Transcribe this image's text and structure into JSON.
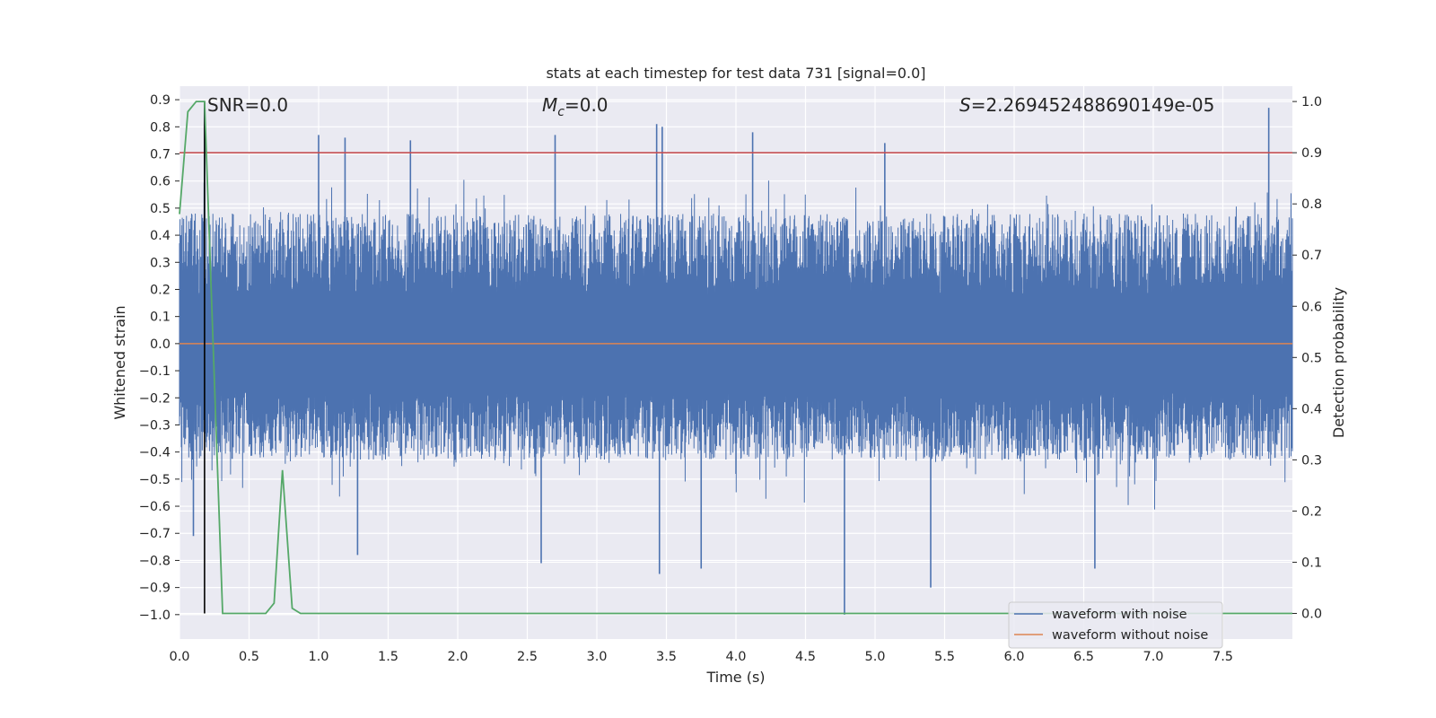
{
  "chart_data": {
    "type": "line",
    "title": "stats at each timestep for test data 731 [signal=0.0]",
    "xlabel": "Time (s)",
    "ylabel": "Whitened strain",
    "y2label": "Detection probability",
    "xlim": [
      0.0,
      8.0
    ],
    "ylim": [
      -1.09,
      0.95
    ],
    "y2lim": [
      -0.05,
      1.03
    ],
    "xticks": [
      "0.0",
      "0.5",
      "1.0",
      "1.5",
      "2.0",
      "2.5",
      "3.0",
      "3.5",
      "4.0",
      "4.5",
      "5.0",
      "5.5",
      "6.0",
      "6.5",
      "7.0",
      "7.5"
    ],
    "xtick_values": [
      0.0,
      0.5,
      1.0,
      1.5,
      2.0,
      2.5,
      3.0,
      3.5,
      4.0,
      4.5,
      5.0,
      5.5,
      6.0,
      6.5,
      7.0,
      7.5
    ],
    "yticks": [
      "0.9",
      "0.8",
      "0.7",
      "0.6",
      "0.5",
      "0.4",
      "0.3",
      "0.2",
      "0.1",
      "0.0",
      "−0.1",
      "−0.2",
      "−0.3",
      "−0.4",
      "−0.5",
      "−0.6",
      "−0.7",
      "−0.8",
      "−0.9",
      "−1.0"
    ],
    "ytick_values": [
      0.9,
      0.8,
      0.7,
      0.6,
      0.5,
      0.4,
      0.3,
      0.2,
      0.1,
      0.0,
      -0.1,
      -0.2,
      -0.3,
      -0.4,
      -0.5,
      -0.6,
      -0.7,
      -0.8,
      -0.9,
      -1.0
    ],
    "y2ticks": [
      "1.0",
      "0.9",
      "0.8",
      "0.7",
      "0.6",
      "0.5",
      "0.4",
      "0.3",
      "0.2",
      "0.1",
      "0.0"
    ],
    "y2tick_values": [
      1.0,
      0.9,
      0.8,
      0.7,
      0.6,
      0.5,
      0.4,
      0.3,
      0.2,
      0.1,
      0.0
    ],
    "annotations": {
      "snr": "SNR=0.0",
      "mc_symbol": "M",
      "mc_sub": "c",
      "mc_value": "=0.0",
      "s_symbol": "S",
      "s_value": "=2.269452488690149e-05"
    },
    "threshold": {
      "value": 0.9,
      "axis": "y2",
      "color": "#c44e52"
    },
    "peak_marker": {
      "x": 0.18,
      "color": "#000000"
    },
    "series": [
      {
        "name": "waveform with noise",
        "axis": "y",
        "color": "#4c72b0",
        "envelope_hint": "dense noise, mostly within [-0.45, 0.5]",
        "notable_peaks": [
          {
            "x": 0.18,
            "y": 0.87
          },
          {
            "x": 1.0,
            "y": 0.77
          },
          {
            "x": 1.19,
            "y": 0.76
          },
          {
            "x": 1.66,
            "y": 0.75
          },
          {
            "x": 2.7,
            "y": 0.77
          },
          {
            "x": 3.43,
            "y": 0.81
          },
          {
            "x": 3.47,
            "y": 0.8
          },
          {
            "x": 4.12,
            "y": 0.78
          },
          {
            "x": 5.07,
            "y": 0.74
          },
          {
            "x": 7.83,
            "y": 0.87
          }
        ],
        "notable_troughs": [
          {
            "x": 0.1,
            "y": -0.71
          },
          {
            "x": 1.28,
            "y": -0.78
          },
          {
            "x": 2.6,
            "y": -0.81
          },
          {
            "x": 3.45,
            "y": -0.85
          },
          {
            "x": 3.75,
            "y": -0.83
          },
          {
            "x": 4.78,
            "y": -1.0
          },
          {
            "x": 5.4,
            "y": -0.9
          },
          {
            "x": 6.58,
            "y": -0.83
          }
        ]
      },
      {
        "name": "waveform without noise",
        "axis": "y",
        "color": "#dd8452",
        "x": [
          0.0,
          8.0
        ],
        "y": [
          0.0,
          0.0
        ]
      },
      {
        "name": "detection probability",
        "axis": "y2",
        "color": "#55a868",
        "x": [
          0.0,
          0.06,
          0.12,
          0.18,
          0.31,
          0.62,
          0.68,
          0.74,
          0.81,
          0.87,
          8.0
        ],
        "y": [
          0.78,
          0.98,
          1.0,
          1.0,
          0.0,
          0.0,
          0.02,
          0.28,
          0.01,
          0.0,
          0.0
        ]
      }
    ],
    "legend": {
      "position": "lower-right",
      "entries": [
        {
          "label": "waveform with noise",
          "color": "#4c72b0"
        },
        {
          "label": "waveform without noise",
          "color": "#dd8452"
        }
      ]
    }
  }
}
